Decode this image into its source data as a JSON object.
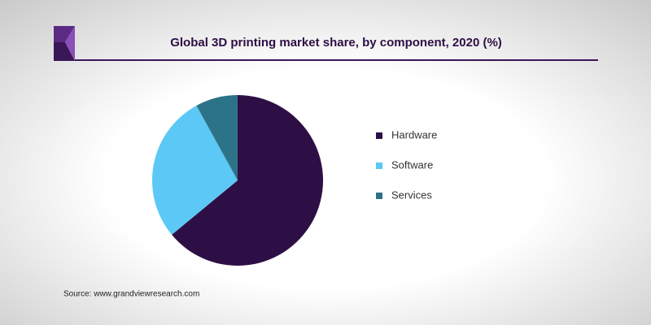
{
  "chart_data": {
    "type": "pie",
    "title": "Global 3D printing market share, by component, 2020 (%)",
    "categories": [
      "Hardware",
      "Software",
      "Services"
    ],
    "values": [
      64,
      28,
      8
    ],
    "colors": [
      "#2e0f45",
      "#5bc8f5",
      "#2d7388"
    ],
    "source": "Source: www.grandviewresearch.com"
  }
}
